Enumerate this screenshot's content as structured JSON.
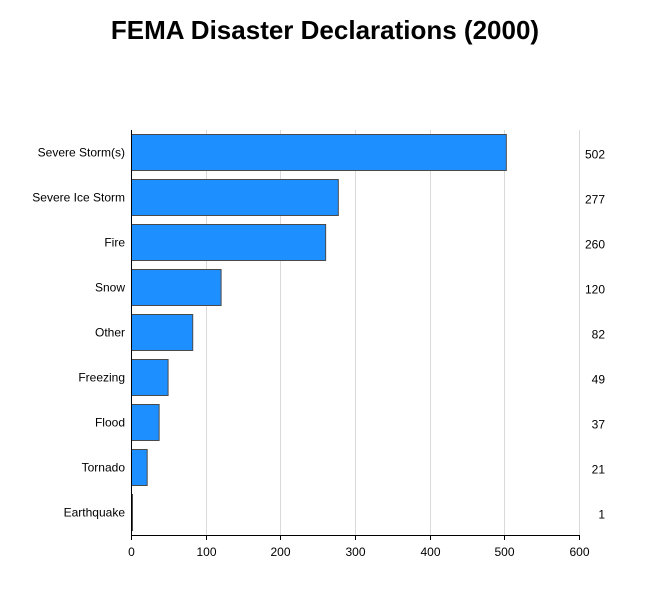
{
  "chart_data": {
    "type": "bar",
    "orientation": "horizontal",
    "title": "FEMA Disaster Declarations (2000)",
    "xlabel": "",
    "ylabel": "",
    "categories": [
      "Severe Storm(s)",
      "Severe Ice Storm",
      "Fire",
      "Snow",
      "Other",
      "Freezing",
      "Flood",
      "Tornado",
      "Earthquake"
    ],
    "values": [
      502,
      277,
      260,
      120,
      82,
      49,
      37,
      21,
      1
    ],
    "value_labels": [
      "502",
      "277",
      "260",
      "120",
      "82",
      "49",
      "37",
      "21",
      "1"
    ],
    "xlim": [
      0,
      600
    ],
    "xticks": [
      0,
      100,
      200,
      300,
      400,
      500,
      600
    ],
    "xtick_labels": [
      "0",
      "100",
      "200",
      "300",
      "400",
      "500",
      "600"
    ],
    "grid": "vertical",
    "legend": "none",
    "bar_color": "#1E8FFF"
  }
}
